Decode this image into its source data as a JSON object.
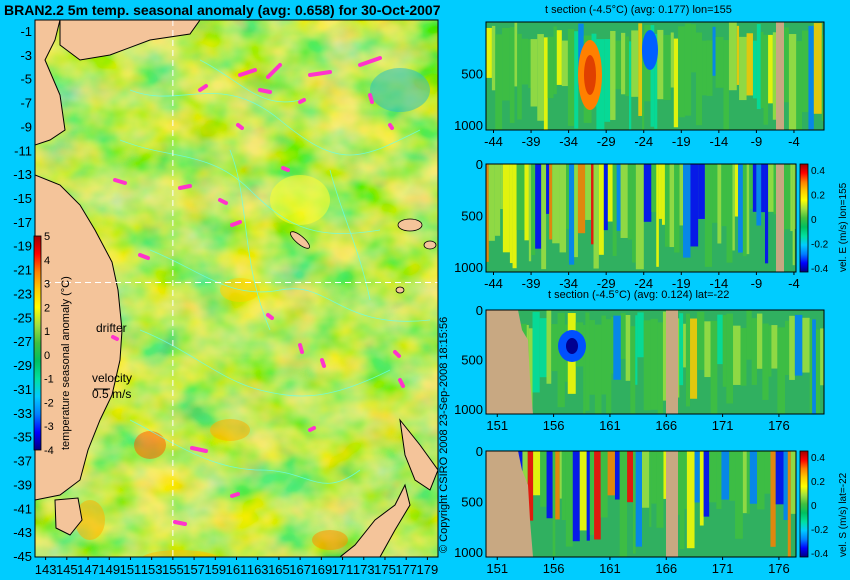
{
  "colors": {
    "background": "#00ccff",
    "land": "#e8b98a",
    "section_land": "#c8a882",
    "drifter": "#ff33cc",
    "contour": "#66ffee",
    "colormap": [
      "#000080",
      "#0000ff",
      "#0080ff",
      "#00ccff",
      "#00e0a0",
      "#00c060",
      "#40c040",
      "#a0e040",
      "#ffff00",
      "#ffcc00",
      "#ff8000",
      "#ff0000",
      "#a00000"
    ]
  },
  "map": {
    "title": "BRAN2.2 5m temp. seasonal anomaly (avg: 0.658) for 30-Oct-2007",
    "colorbar_label": "temperature seasonal anomaly (°C)",
    "drifter_label": "drifter",
    "velocity_label": "velocity",
    "velocity_value": "0.5 m/s",
    "credit": "© Copyright CSIRO 2008  23-Sep-2008 18:15:56"
  },
  "chart_data": [
    {
      "type": "heatmap",
      "id": "map",
      "title": "BRAN2.2 5m temp. seasonal anomaly (avg: 0.658) for 30-Oct-2007",
      "xticks": [
        "143",
        "145",
        "147",
        "149",
        "151",
        "153",
        "155",
        "157",
        "159",
        "161",
        "163",
        "165",
        "167",
        "169",
        "171",
        "173",
        "175",
        "177",
        "179"
      ],
      "yticks": [
        "-1",
        "-3",
        "-5",
        "-7",
        "-9",
        "-11",
        "-13",
        "-15",
        "-17",
        "-19",
        "-21",
        "-23",
        "-25",
        "-27",
        "-29",
        "-31",
        "-33",
        "-35",
        "-37",
        "-39",
        "-41",
        "-43",
        "-45"
      ],
      "xlim": [
        142,
        180
      ],
      "ylim": [
        -45,
        0
      ],
      "colorbar": {
        "ticks": [
          "5",
          "4",
          "3",
          "2",
          "1",
          "0",
          "-1",
          "-2",
          "-3",
          "-4"
        ],
        "range": [
          -4,
          5
        ],
        "label": "temperature seasonal anomaly (°C)"
      },
      "crosshair": {
        "lon": 155,
        "lat": -22
      }
    },
    {
      "type": "heatmap",
      "id": "tlon",
      "title": "t section (-4.5°C) (avg: 0.177) lon=155",
      "xticks": [
        "-44",
        "-39",
        "-34",
        "-29",
        "-24",
        "-19",
        "-14",
        "-9",
        "-4"
      ],
      "yticks": [
        "500",
        "1000"
      ],
      "xlim": [
        -45,
        0
      ],
      "ylim": [
        1050,
        0
      ]
    },
    {
      "type": "heatmap",
      "id": "vlon",
      "title": "",
      "xticks": [
        "-44",
        "-39",
        "-34",
        "-29",
        "-24",
        "-19",
        "-14",
        "-9",
        "-4"
      ],
      "yticks": [
        "0",
        "500",
        "1000"
      ],
      "xlim": [
        -45,
        0
      ],
      "ylim": [
        1050,
        0
      ],
      "colorbar": {
        "ticks": [
          "0.4",
          "0.2",
          "0",
          "-0.2",
          "-0.4"
        ],
        "range": [
          -0.4,
          0.4
        ],
        "label": "vel. E (m/s) lon=155"
      }
    },
    {
      "type": "heatmap",
      "id": "tlat",
      "title": "t section (-4.5°C) (avg: 0.124) lat=-22",
      "xticks": [
        "151",
        "156",
        "161",
        "166",
        "171",
        "176"
      ],
      "yticks": [
        "0",
        "500",
        "1000"
      ],
      "xlim": [
        150,
        180
      ],
      "ylim": [
        1050,
        0
      ]
    },
    {
      "type": "heatmap",
      "id": "vlat",
      "title": "",
      "xticks": [
        "151",
        "156",
        "161",
        "166",
        "171",
        "176"
      ],
      "yticks": [
        "0",
        "500",
        "1000"
      ],
      "xlim": [
        150,
        180
      ],
      "ylim": [
        1050,
        0
      ],
      "colorbar": {
        "ticks": [
          "0.4",
          "0.2",
          "0",
          "-0.2",
          "-0.4"
        ],
        "range": [
          -0.4,
          0.4
        ],
        "label": "vel. S (m/s) lat=-22"
      }
    }
  ]
}
